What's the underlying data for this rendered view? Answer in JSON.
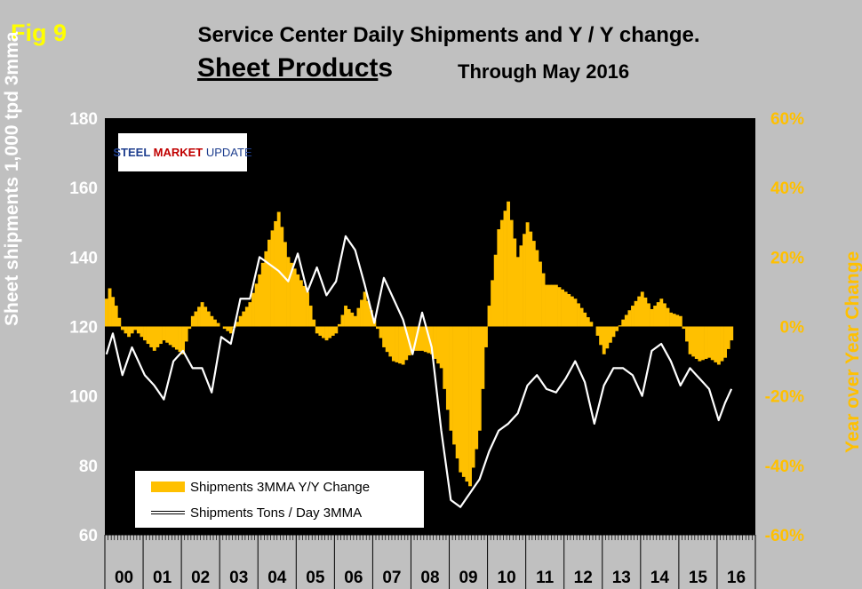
{
  "header": {
    "fig_label": "Fig 9",
    "title_line1": "Service Center Daily Shipments and Y / Y change.",
    "title_line2": "Sheet Product",
    "title_line2_suffix": "s",
    "subtitle": "Through May 2016"
  },
  "logo": {
    "part1": "STEEL ",
    "part2": "MARKET",
    "part3": " UPDATE"
  },
  "chart_data": {
    "type": "bar+line",
    "x_start": "2000-01",
    "ylabel_left": "Sheet shipments 1,000 tpd 3mma",
    "ylabel_right": "Year over Year Change",
    "ylim_left": [
      60,
      180
    ],
    "yticks_left": [
      60,
      80,
      100,
      120,
      140,
      160,
      180
    ],
    "ylim_right": [
      -60,
      60
    ],
    "yticks_right": [
      "-60%",
      "-40%",
      "-20%",
      "0%",
      "20%",
      "40%",
      "60%"
    ],
    "ytick_right_values": [
      -60,
      -40,
      -20,
      0,
      20,
      40,
      60
    ],
    "x_year_labels": [
      "00",
      "01",
      "02",
      "03",
      "04",
      "05",
      "06",
      "07",
      "08",
      "09",
      "10",
      "11",
      "12",
      "13",
      "14",
      "15",
      "16"
    ],
    "grid": false,
    "legend_position": "bottom-left",
    "colors": {
      "plot_bg": "#000000",
      "bars": "#ffc000",
      "line": "#ffffff",
      "page_bg": "#c0c0c0"
    },
    "series": [
      {
        "name": "Shipments 3MMA Y/Y Change",
        "kind": "bar",
        "axis": "right",
        "keypoints": [
          [
            "2000-01",
            8
          ],
          [
            "2000-02",
            11
          ],
          [
            "2000-04",
            6
          ],
          [
            "2000-06",
            -1
          ],
          [
            "2000-08",
            -3
          ],
          [
            "2000-10",
            -1
          ],
          [
            "2001-01",
            -4
          ],
          [
            "2001-04",
            -7
          ],
          [
            "2001-07",
            -4
          ],
          [
            "2001-10",
            -6
          ],
          [
            "2002-01",
            -8
          ],
          [
            "2002-04",
            3
          ],
          [
            "2002-07",
            7
          ],
          [
            "2002-10",
            3
          ],
          [
            "2003-01",
            0
          ],
          [
            "2003-04",
            -2
          ],
          [
            "2003-07",
            3
          ],
          [
            "2003-10",
            7
          ],
          [
            "2004-01",
            15
          ],
          [
            "2004-04",
            25
          ],
          [
            "2004-07",
            33
          ],
          [
            "2004-10",
            20
          ],
          [
            "2005-01",
            15
          ],
          [
            "2005-04",
            10
          ],
          [
            "2005-07",
            -2
          ],
          [
            "2005-10",
            -4
          ],
          [
            "2006-01",
            -2
          ],
          [
            "2006-04",
            6
          ],
          [
            "2006-07",
            3
          ],
          [
            "2006-10",
            10
          ],
          [
            "2007-01",
            2
          ],
          [
            "2007-04",
            -6
          ],
          [
            "2007-07",
            -10
          ],
          [
            "2007-10",
            -11
          ],
          [
            "2008-01",
            -7
          ],
          [
            "2008-04",
            -7
          ],
          [
            "2008-07",
            -8
          ],
          [
            "2008-10",
            -12
          ],
          [
            "2009-01",
            -30
          ],
          [
            "2009-04",
            -42
          ],
          [
            "2009-07",
            -46
          ],
          [
            "2009-10",
            -30
          ],
          [
            "2010-01",
            6
          ],
          [
            "2010-04",
            28
          ],
          [
            "2010-07",
            36
          ],
          [
            "2010-10",
            20
          ],
          [
            "2011-01",
            30
          ],
          [
            "2011-04",
            22
          ],
          [
            "2011-07",
            12
          ],
          [
            "2011-10",
            12
          ],
          [
            "2012-01",
            10
          ],
          [
            "2012-04",
            8
          ],
          [
            "2012-07",
            4
          ],
          [
            "2012-10",
            0
          ],
          [
            "2013-01",
            -8
          ],
          [
            "2013-04",
            -3
          ],
          [
            "2013-07",
            2
          ],
          [
            "2013-10",
            6
          ],
          [
            "2014-01",
            10
          ],
          [
            "2014-04",
            5
          ],
          [
            "2014-07",
            8
          ],
          [
            "2014-10",
            4
          ],
          [
            "2015-01",
            3
          ],
          [
            "2015-04",
            -8
          ],
          [
            "2015-07",
            -10
          ],
          [
            "2015-10",
            -9
          ],
          [
            "2016-01",
            -11
          ],
          [
            "2016-03",
            -9
          ],
          [
            "2016-05",
            -4
          ]
        ]
      },
      {
        "name": "Shipments Tons / Day 3MMA",
        "kind": "line",
        "axis": "left",
        "keypoints": [
          [
            "2000-01",
            112
          ],
          [
            "2000-03",
            118
          ],
          [
            "2000-06",
            106
          ],
          [
            "2000-09",
            114
          ],
          [
            "2001-01",
            106
          ],
          [
            "2001-04",
            103
          ],
          [
            "2001-07",
            99
          ],
          [
            "2001-10",
            110
          ],
          [
            "2002-01",
            113
          ],
          [
            "2002-04",
            108
          ],
          [
            "2002-07",
            108
          ],
          [
            "2002-10",
            101
          ],
          [
            "2003-01",
            117
          ],
          [
            "2003-04",
            115
          ],
          [
            "2003-07",
            128
          ],
          [
            "2003-10",
            128
          ],
          [
            "2004-01",
            140
          ],
          [
            "2004-04",
            138
          ],
          [
            "2004-07",
            136
          ],
          [
            "2004-10",
            133
          ],
          [
            "2005-01",
            141
          ],
          [
            "2005-04",
            130
          ],
          [
            "2005-07",
            137
          ],
          [
            "2005-10",
            129
          ],
          [
            "2006-01",
            133
          ],
          [
            "2006-04",
            146
          ],
          [
            "2006-07",
            142
          ],
          [
            "2006-10",
            132
          ],
          [
            "2007-01",
            121
          ],
          [
            "2007-04",
            134
          ],
          [
            "2007-07",
            128
          ],
          [
            "2007-10",
            122
          ],
          [
            "2008-01",
            112
          ],
          [
            "2008-04",
            124
          ],
          [
            "2008-07",
            114
          ],
          [
            "2008-10",
            90
          ],
          [
            "2009-01",
            70
          ],
          [
            "2009-04",
            68
          ],
          [
            "2009-07",
            72
          ],
          [
            "2009-10",
            76
          ],
          [
            "2010-01",
            84
          ],
          [
            "2010-04",
            90
          ],
          [
            "2010-07",
            92
          ],
          [
            "2010-10",
            95
          ],
          [
            "2011-01",
            103
          ],
          [
            "2011-04",
            106
          ],
          [
            "2011-07",
            102
          ],
          [
            "2011-10",
            101
          ],
          [
            "2012-01",
            105
          ],
          [
            "2012-04",
            110
          ],
          [
            "2012-07",
            104
          ],
          [
            "2012-10",
            92
          ],
          [
            "2013-01",
            103
          ],
          [
            "2013-04",
            108
          ],
          [
            "2013-07",
            108
          ],
          [
            "2013-10",
            106
          ],
          [
            "2014-01",
            100
          ],
          [
            "2014-04",
            113
          ],
          [
            "2014-07",
            115
          ],
          [
            "2014-10",
            110
          ],
          [
            "2015-01",
            103
          ],
          [
            "2015-04",
            108
          ],
          [
            "2015-07",
            105
          ],
          [
            "2015-10",
            102
          ],
          [
            "2016-01",
            93
          ],
          [
            "2016-03",
            98
          ],
          [
            "2016-05",
            102
          ]
        ]
      }
    ]
  }
}
